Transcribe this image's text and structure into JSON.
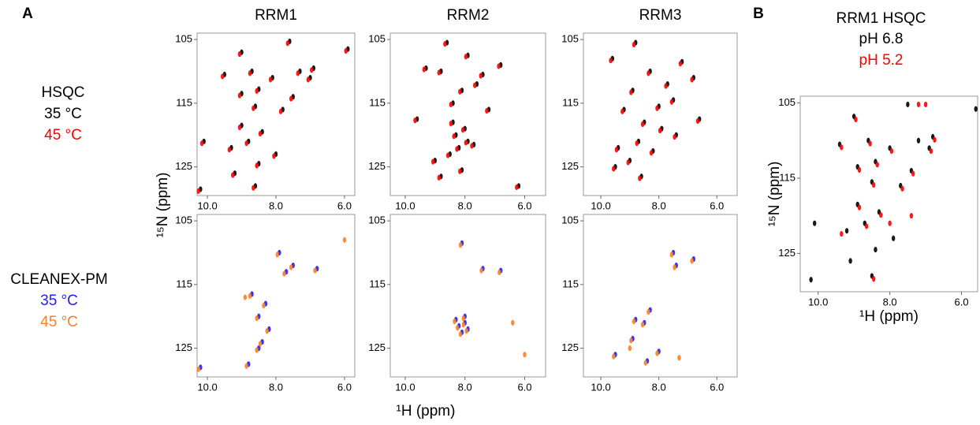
{
  "labels": {
    "panel_a": "A",
    "panel_b": "B"
  },
  "legends": [
    {
      "title": "HSQC",
      "entries": [
        {
          "name": "35 °C",
          "color": "#000000"
        },
        {
          "name": "45 °C",
          "color": "#ff0000"
        }
      ]
    },
    {
      "title": "CLEANEX-PM",
      "entries": [
        {
          "name": "35 °C",
          "color": "#2020ff"
        },
        {
          "name": "45 °C",
          "color": "#ff7f27"
        }
      ]
    }
  ],
  "xlabel": "¹H (ppm)",
  "ylabel": "¹⁵N (ppm)",
  "chart_data": [
    {
      "type": "scatter",
      "title": "RRM1",
      "xlim": [
        10.3,
        5.7
      ],
      "ylim": [
        129.5,
        104
      ],
      "xticks": [
        {
          "value": 10,
          "label": "10.0"
        },
        {
          "value": 8,
          "label": "8.0"
        },
        {
          "value": 6,
          "label": "6.0"
        }
      ],
      "yticks": [
        105,
        115,
        125
      ],
      "series": [
        {
          "color": "#000000",
          "x": [
            5.9,
            7.6,
            9.0,
            6.9,
            9.5,
            8.7,
            8.1,
            7.0,
            8.5,
            9.0,
            7.5,
            8.6,
            7.8,
            9.0,
            8.4,
            10.1,
            9.3,
            8.8,
            8.5,
            8.6,
            10.2,
            7.3,
            9.2,
            8.0
          ],
          "values": [
            106.5,
            105.3,
            107,
            109.5,
            110.5,
            110,
            111,
            111,
            112.8,
            113.5,
            114,
            115.5,
            116,
            118.5,
            119.5,
            121,
            122,
            121,
            124.5,
            128,
            128.5,
            110,
            126,
            123
          ]
        },
        {
          "color": "#ff0000",
          "x": [
            5.96,
            7.66,
            9.06,
            6.96,
            9.56,
            8.76,
            8.16,
            7.06,
            8.56,
            9.06,
            7.56,
            8.66,
            7.86,
            9.06,
            8.46,
            10.16,
            9.36,
            8.86,
            8.56,
            8.66,
            10.26,
            7.36,
            9.26,
            8.06
          ],
          "values": [
            106.8,
            105.6,
            107.3,
            109.8,
            110.8,
            110.3,
            111.3,
            111.3,
            113.1,
            113.8,
            114.3,
            115.8,
            116.3,
            118.8,
            119.8,
            121.3,
            122.3,
            121.3,
            124.8,
            128.3,
            128.8,
            110.3,
            126.3,
            123.3
          ]
        }
      ]
    },
    {
      "type": "scatter",
      "title": "RRM2",
      "xlim": [
        10.5,
        5.3
      ],
      "ylim": [
        129.5,
        104
      ],
      "xticks": [
        {
          "value": 10,
          "label": "10.0"
        },
        {
          "value": 8,
          "label": "8.0"
        },
        {
          "value": 6,
          "label": "6.0"
        }
      ],
      "yticks": [
        105,
        115,
        125
      ],
      "series": [
        {
          "color": "#000000",
          "x": [
            8.6,
            7.9,
            9.3,
            8.8,
            7.4,
            6.8,
            7.6,
            8.1,
            8.4,
            9.6,
            7.2,
            8.0,
            8.3,
            7.9,
            8.2,
            8.5,
            7.7,
            9.0,
            8.8,
            6.2,
            8.1,
            8.4
          ],
          "values": [
            105.5,
            107.5,
            109.5,
            110,
            110.5,
            109,
            112,
            113,
            115,
            117.5,
            116,
            119,
            120,
            121,
            122,
            123,
            121.5,
            124,
            126.5,
            128,
            125.5,
            118
          ]
        },
        {
          "color": "#ff0000",
          "x": [
            8.67,
            7.97,
            9.37,
            8.87,
            7.47,
            6.87,
            7.67,
            8.17,
            8.47,
            9.67,
            7.27,
            8.07,
            8.37,
            7.97,
            8.27,
            8.57,
            7.77,
            9.07,
            8.87,
            6.27,
            8.17,
            8.47
          ],
          "values": [
            105.7,
            107.7,
            109.7,
            110.2,
            110.7,
            109.2,
            112.2,
            113.2,
            115.2,
            117.7,
            116.2,
            119.2,
            120.2,
            121.2,
            122.2,
            123.2,
            121.7,
            124.2,
            126.7,
            128.2,
            125.7,
            118.2
          ]
        }
      ]
    },
    {
      "type": "scatter",
      "title": "RRM3",
      "xlim": [
        10.6,
        5.3
      ],
      "ylim": [
        129.5,
        104
      ],
      "xticks": [
        {
          "value": 10,
          "label": "10.0"
        },
        {
          "value": 8,
          "label": "8.0"
        },
        {
          "value": 6,
          "label": "6.0"
        }
      ],
      "yticks": [
        105,
        115,
        125
      ],
      "series": [
        {
          "color": "#000000",
          "x": [
            8.8,
            9.6,
            7.2,
            8.3,
            7.7,
            6.8,
            8.9,
            7.5,
            8.0,
            9.2,
            8.5,
            7.9,
            6.6,
            8.7,
            9.4,
            8.2,
            9.0,
            9.5,
            8.6,
            7.4
          ],
          "values": [
            105.5,
            108,
            108.5,
            110,
            112,
            111,
            113,
            114.5,
            115.5,
            116,
            118,
            119,
            117.5,
            121,
            122,
            122.5,
            124,
            125,
            126.5,
            120
          ]
        },
        {
          "color": "#ff0000",
          "x": [
            8.86,
            9.66,
            7.26,
            8.36,
            7.76,
            6.86,
            8.96,
            7.56,
            8.06,
            9.26,
            8.56,
            7.96,
            6.66,
            8.76,
            9.46,
            8.26,
            9.06,
            9.56,
            8.66,
            7.46
          ],
          "values": [
            105.8,
            108.3,
            108.8,
            110.3,
            112.3,
            111.3,
            113.3,
            114.8,
            115.8,
            116.3,
            118.3,
            119.3,
            117.8,
            121.3,
            122.3,
            122.8,
            124.3,
            125.3,
            126.8,
            120.3
          ]
        }
      ]
    },
    {
      "type": "scatter",
      "xlim": [
        10.3,
        5.7
      ],
      "ylim": [
        129.5,
        104
      ],
      "xticks": [
        {
          "value": 10,
          "label": "10.0"
        },
        {
          "value": 8,
          "label": "8.0"
        },
        {
          "value": 6,
          "label": "6.0"
        }
      ],
      "yticks": [
        105,
        115,
        125
      ],
      "series": [
        {
          "color": "#2020ff",
          "x": [
            6.8,
            7.5,
            7.7,
            8.3,
            8.5,
            8.2,
            8.4,
            8.5,
            8.7,
            8.8,
            10.2,
            7.9
          ],
          "values": [
            112.5,
            112,
            113,
            118,
            120,
            122,
            124,
            125,
            116.5,
            127.5,
            128,
            110
          ]
        },
        {
          "color": "#ff7f27",
          "x": [
            6.86,
            7.56,
            7.76,
            8.36,
            8.56,
            8.26,
            8.46,
            8.56,
            8.76,
            8.86,
            10.26,
            7.96,
            6.0,
            8.9
          ],
          "values": [
            112.8,
            112.3,
            113.3,
            118.3,
            120.3,
            122.3,
            124.3,
            125.3,
            116.8,
            127.8,
            128.3,
            110.3,
            108,
            117
          ]
        }
      ]
    },
    {
      "type": "scatter",
      "xlim": [
        10.5,
        5.3
      ],
      "ylim": [
        129.5,
        104
      ],
      "xticks": [
        {
          "value": 10,
          "label": "10.0"
        },
        {
          "value": 8,
          "label": "8.0"
        },
        {
          "value": 6,
          "label": "6.0"
        }
      ],
      "yticks": [
        105,
        115,
        125
      ],
      "series": [
        {
          "color": "#2020ff",
          "x": [
            8.1,
            7.4,
            6.8,
            8.0,
            8.2,
            7.9,
            8.3,
            8.1,
            8.0
          ],
          "values": [
            108.5,
            112.5,
            112.8,
            121,
            121.5,
            122,
            120.5,
            122.5,
            120
          ]
        },
        {
          "color": "#ff7f27",
          "x": [
            8.15,
            7.45,
            6.85,
            8.05,
            8.25,
            7.95,
            8.35,
            8.15,
            8.05,
            6.0,
            6.4
          ],
          "values": [
            108.8,
            112.8,
            113.1,
            121.3,
            121.8,
            122.3,
            120.8,
            122.8,
            120.3,
            126,
            121
          ]
        }
      ]
    },
    {
      "type": "scatter",
      "xlim": [
        10.6,
        5.3
      ],
      "ylim": [
        129.5,
        104
      ],
      "xticks": [
        {
          "value": 10,
          "label": "10.0"
        },
        {
          "value": 8,
          "label": "8.0"
        },
        {
          "value": 6,
          "label": "6.0"
        }
      ],
      "yticks": [
        105,
        115,
        125
      ],
      "series": [
        {
          "color": "#2020ff",
          "x": [
            7.5,
            6.8,
            7.4,
            8.3,
            8.5,
            8.8,
            8.9,
            9.5,
            8.0,
            8.4
          ],
          "values": [
            110,
            111,
            112,
            119,
            121,
            120.5,
            123.5,
            126,
            125.5,
            127
          ]
        },
        {
          "color": "#ff7f27",
          "x": [
            7.56,
            6.86,
            7.46,
            8.36,
            8.56,
            8.86,
            8.96,
            9.56,
            8.06,
            8.46,
            7.3,
            9.0
          ],
          "values": [
            110.3,
            111.3,
            112.3,
            119.3,
            121.3,
            120.8,
            123.8,
            126.3,
            125.8,
            127.3,
            126.5,
            125
          ]
        }
      ]
    },
    {
      "type": "scatter",
      "title": "RRM1 HSQC",
      "xlabel": "¹H (ppm)",
      "ylabel": "¹⁵N (ppm)",
      "xlim": [
        10.5,
        5.55
      ],
      "ylim": [
        130.1,
        104.1
      ],
      "xticks": [
        {
          "value": 10,
          "label": "10.0"
        },
        {
          "value": 8,
          "label": "8.0"
        },
        {
          "value": 6,
          "label": "6.0"
        }
      ],
      "yticks": [
        105,
        115,
        125
      ],
      "series": [
        {
          "name": "pH 6.8",
          "color": "#000000",
          "x": [
            5.6,
            7.5,
            9.0,
            6.8,
            9.4,
            8.6,
            8.0,
            6.9,
            8.4,
            8.9,
            7.4,
            8.5,
            7.7,
            8.9,
            8.3,
            10.1,
            9.2,
            8.7,
            8.4,
            8.5,
            10.2,
            7.2,
            9.1,
            7.9
          ],
          "values": [
            105.8,
            105.2,
            106.8,
            109.5,
            110.5,
            110,
            111,
            111,
            112.8,
            113.5,
            114,
            115.5,
            116,
            118.5,
            119.5,
            121,
            122,
            121,
            124.5,
            128,
            128.5,
            110,
            126,
            123
          ]
        },
        {
          "name": "pH 5.2",
          "color": "#ff0000",
          "x": [
            7.0,
            7.2,
            8.95,
            6.75,
            9.35,
            8.55,
            7.95,
            6.85,
            8.35,
            8.85,
            7.35,
            8.45,
            7.65,
            8.85,
            8.25,
            9.35,
            8.65,
            7.4,
            8.0,
            8.45
          ],
          "values": [
            105.2,
            105.2,
            107.2,
            109.9,
            110.9,
            110.4,
            111.4,
            111.4,
            113.2,
            113.9,
            114.4,
            115.9,
            116.4,
            118.9,
            119.9,
            122.4,
            121.4,
            120,
            121,
            128.4
          ]
        }
      ]
    }
  ]
}
